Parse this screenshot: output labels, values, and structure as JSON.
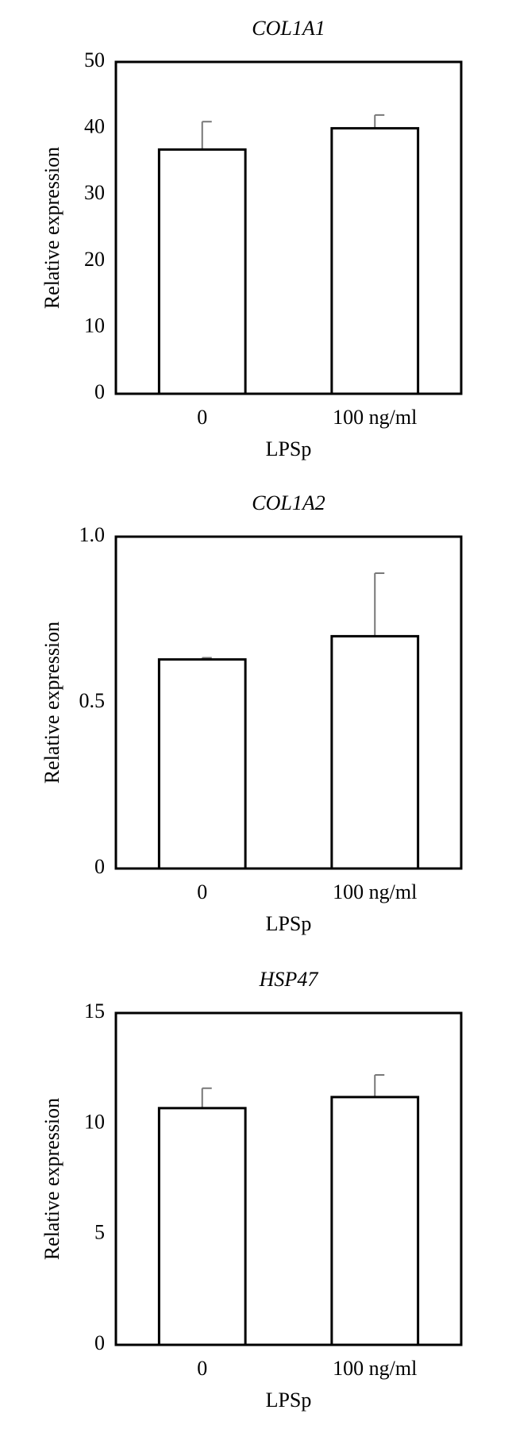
{
  "chart_data": [
    {
      "type": "bar",
      "title": "COL1A1",
      "x_label": "LPSp",
      "y_label": "Relative expression",
      "categories": [
        "0",
        "100 ng/ml"
      ],
      "values": [
        36.8,
        40
      ],
      "errors": [
        4.2,
        2
      ],
      "color": "#ffffff",
      "ylim": [
        0,
        50
      ],
      "yticks": [
        0,
        10,
        20,
        30,
        40,
        50
      ]
    },
    {
      "type": "bar",
      "title": "COL1A2",
      "x_label": "LPSp",
      "y_label": "Relative expression",
      "categories": [
        "0",
        "100 ng/ml"
      ],
      "values": [
        0.63,
        0.7
      ],
      "errors": [
        0.005,
        0.19
      ],
      "color": "#ffffff",
      "ylim": [
        0,
        1
      ],
      "yticks": [
        0,
        0.5,
        {
          "value": 1,
          "label": "1.0"
        }
      ]
    },
    {
      "type": "bar",
      "title": "HSP47",
      "x_label": "LPSp",
      "y_label": "Relative expression",
      "categories": [
        "0",
        "100 ng/ml"
      ],
      "values": [
        10.7,
        11.2
      ],
      "errors": [
        0.9,
        1.0
      ],
      "color": "#ffffff",
      "ylim": [
        0,
        15
      ],
      "yticks": [
        0,
        5,
        10,
        15
      ]
    }
  ]
}
